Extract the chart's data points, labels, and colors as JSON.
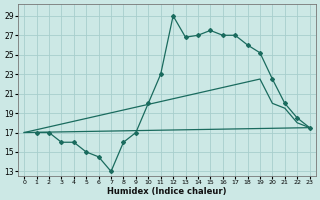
{
  "xlabel": "Humidex (Indice chaleur)",
  "background_color": "#cce8e5",
  "grid_color": "#a8cecc",
  "line_color": "#1a6b5e",
  "xlim": [
    -0.5,
    23.5
  ],
  "ylim": [
    12.5,
    30.2
  ],
  "xticks": [
    0,
    1,
    2,
    3,
    4,
    5,
    6,
    7,
    8,
    9,
    10,
    11,
    12,
    13,
    14,
    15,
    16,
    17,
    18,
    19,
    20,
    21,
    22,
    23
  ],
  "yticks": [
    13,
    15,
    17,
    19,
    21,
    23,
    25,
    27,
    29
  ],
  "curve1_x": [
    1,
    2,
    3,
    4,
    5,
    6,
    7,
    8,
    9,
    10,
    11,
    12,
    13,
    14,
    15,
    16,
    17,
    18,
    19,
    20,
    21,
    22,
    23
  ],
  "curve1_y": [
    17,
    17,
    16,
    16,
    15,
    14.5,
    13,
    16,
    17,
    20,
    23,
    29,
    26.8,
    27,
    27.5,
    27,
    27,
    26,
    25.2,
    22.5,
    20,
    18.5,
    17.5
  ],
  "curve2_x": [
    0,
    23
  ],
  "curve2_y": [
    17,
    17.5
  ],
  "curve3_x": [
    0,
    19,
    20,
    21,
    22,
    23
  ],
  "curve3_y": [
    17,
    22.5,
    20,
    19.5,
    18,
    17.5
  ]
}
